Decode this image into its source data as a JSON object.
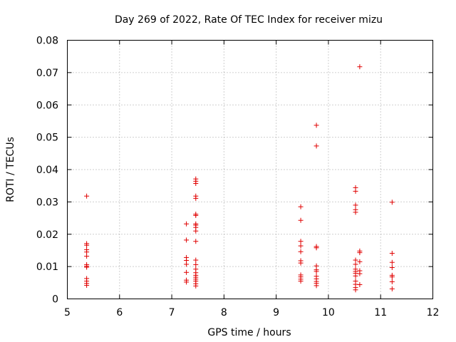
{
  "chart_data": {
    "type": "scatter",
    "title": "Day 269 of 2022, Rate Of TEC Index for receiver mizu",
    "xlabel": "GPS time / hours",
    "ylabel": "ROTI / TECUs",
    "xlim": [
      5,
      12
    ],
    "ylim": [
      0,
      0.08
    ],
    "xticks": [
      "5",
      "6",
      "7",
      "8",
      "9",
      "10",
      "11",
      "12"
    ],
    "yticks": [
      "0",
      "0.01",
      "0.02",
      "0.03",
      "0.04",
      "0.05",
      "0.06",
      "0.07",
      "0.08"
    ],
    "grid": true,
    "marker": "plus",
    "color": "#e00000",
    "points": [
      [
        5.37,
        0.0318
      ],
      [
        5.37,
        0.0171
      ],
      [
        5.37,
        0.0166
      ],
      [
        5.37,
        0.0152
      ],
      [
        5.37,
        0.0145
      ],
      [
        5.37,
        0.0132
      ],
      [
        5.37,
        0.0106
      ],
      [
        5.37,
        0.0101
      ],
      [
        5.37,
        0.0098
      ],
      [
        5.37,
        0.0063
      ],
      [
        5.37,
        0.0055
      ],
      [
        5.37,
        0.0048
      ],
      [
        5.37,
        0.0042
      ],
      [
        7.28,
        0.0232
      ],
      [
        7.28,
        0.0182
      ],
      [
        7.28,
        0.0128
      ],
      [
        7.28,
        0.0119
      ],
      [
        7.28,
        0.0107
      ],
      [
        7.28,
        0.0082
      ],
      [
        7.28,
        0.0058
      ],
      [
        7.28,
        0.0052
      ],
      [
        7.46,
        0.0371
      ],
      [
        7.46,
        0.0364
      ],
      [
        7.46,
        0.0357
      ],
      [
        7.46,
        0.0318
      ],
      [
        7.46,
        0.0311
      ],
      [
        7.46,
        0.0262
      ],
      [
        7.46,
        0.0258
      ],
      [
        7.46,
        0.0232
      ],
      [
        7.46,
        0.0228
      ],
      [
        7.46,
        0.0221
      ],
      [
        7.46,
        0.021
      ],
      [
        7.46,
        0.0178
      ],
      [
        7.46,
        0.012
      ],
      [
        7.46,
        0.0106
      ],
      [
        7.46,
        0.0092
      ],
      [
        7.46,
        0.0081
      ],
      [
        7.46,
        0.0073
      ],
      [
        7.46,
        0.0067
      ],
      [
        7.46,
        0.0061
      ],
      [
        7.46,
        0.0055
      ],
      [
        7.46,
        0.0047
      ],
      [
        7.46,
        0.004
      ],
      [
        9.47,
        0.0285
      ],
      [
        9.47,
        0.0243
      ],
      [
        9.47,
        0.0178
      ],
      [
        9.47,
        0.0164
      ],
      [
        9.47,
        0.0146
      ],
      [
        9.47,
        0.0118
      ],
      [
        9.47,
        0.0111
      ],
      [
        9.47,
        0.0074
      ],
      [
        9.47,
        0.0068
      ],
      [
        9.47,
        0.0061
      ],
      [
        9.47,
        0.0055
      ],
      [
        9.77,
        0.0537
      ],
      [
        9.77,
        0.0473
      ],
      [
        9.77,
        0.0162
      ],
      [
        9.77,
        0.0158
      ],
      [
        9.77,
        0.0102
      ],
      [
        9.77,
        0.009
      ],
      [
        9.77,
        0.0085
      ],
      [
        9.77,
        0.007
      ],
      [
        9.77,
        0.0062
      ],
      [
        9.77,
        0.0054
      ],
      [
        9.77,
        0.0048
      ],
      [
        9.77,
        0.0041
      ],
      [
        10.52,
        0.0344
      ],
      [
        10.52,
        0.0333
      ],
      [
        10.52,
        0.029
      ],
      [
        10.52,
        0.0276
      ],
      [
        10.52,
        0.0268
      ],
      [
        10.52,
        0.012
      ],
      [
        10.52,
        0.0107
      ],
      [
        10.52,
        0.0092
      ],
      [
        10.52,
        0.0085
      ],
      [
        10.52,
        0.0079
      ],
      [
        10.52,
        0.0071
      ],
      [
        10.52,
        0.0055
      ],
      [
        10.52,
        0.0045
      ],
      [
        10.52,
        0.0035
      ],
      [
        10.52,
        0.0028
      ],
      [
        10.6,
        0.0718
      ],
      [
        10.6,
        0.0148
      ],
      [
        10.6,
        0.0143
      ],
      [
        10.6,
        0.0115
      ],
      [
        10.6,
        0.0087
      ],
      [
        10.6,
        0.0078
      ],
      [
        10.6,
        0.0044
      ],
      [
        11.22,
        0.0299
      ],
      [
        11.22,
        0.0141
      ],
      [
        11.22,
        0.0113
      ],
      [
        11.22,
        0.0097
      ],
      [
        11.22,
        0.0073
      ],
      [
        11.22,
        0.0068
      ],
      [
        11.22,
        0.0053
      ],
      [
        11.22,
        0.0031
      ]
    ]
  }
}
